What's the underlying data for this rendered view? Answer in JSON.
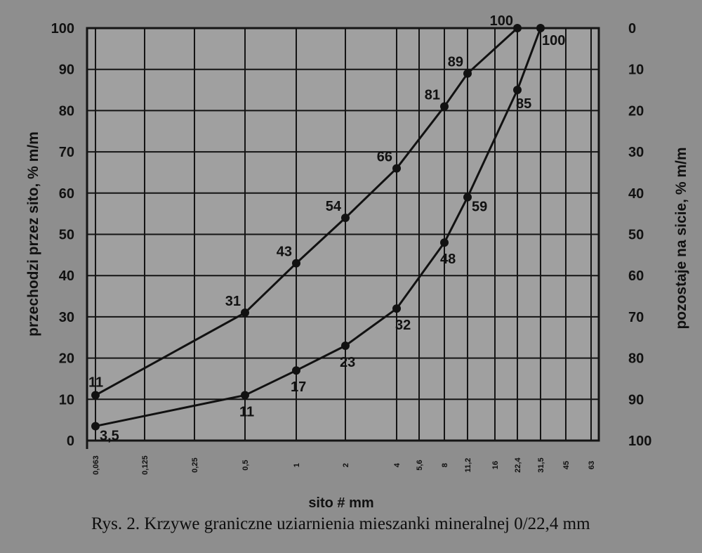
{
  "chart_data": {
    "type": "line",
    "xlabel": "sito # mm",
    "ylabel": "przechodzi przez sito, % m/m",
    "ylabel_right": "pozostaje na sicie, % m/m",
    "x_scale": "log",
    "x_ticks": [
      "0,063",
      "0,125",
      "0,25",
      "0,5",
      "1",
      "2",
      "4",
      "5,6",
      "8",
      "11,2",
      "16",
      "22,4",
      "31,5",
      "45",
      "63"
    ],
    "x_tick_values": [
      0.063,
      0.125,
      0.25,
      0.5,
      1,
      2,
      4,
      5.6,
      8,
      11.2,
      16,
      22.4,
      31.5,
      45,
      63
    ],
    "y_ticks_left": [
      "0",
      "10",
      "20",
      "30",
      "40",
      "50",
      "60",
      "70",
      "80",
      "90",
      "100"
    ],
    "y_ticks_right": [
      "100",
      "90",
      "80",
      "70",
      "60",
      "50",
      "40",
      "30",
      "20",
      "10",
      "0"
    ],
    "ylim": [
      0,
      100
    ],
    "grid": true,
    "series": [
      {
        "x": [
          0.063,
          0.5,
          1,
          2,
          4,
          8,
          11.2,
          22.4
        ],
        "values": [
          11,
          31,
          43,
          54,
          66,
          81,
          89,
          100
        ],
        "labels": [
          "11",
          "31",
          "43",
          "54",
          "66",
          "81",
          "89",
          "100"
        ]
      },
      {
        "x": [
          0.063,
          0.5,
          1,
          2,
          4,
          8,
          11.2,
          22.4,
          31.5
        ],
        "values": [
          3.5,
          11,
          17,
          23,
          32,
          48,
          59,
          85,
          100
        ],
        "labels": [
          "3,5",
          "11",
          "17",
          "23",
          "32",
          "48",
          "59",
          "85",
          "100"
        ]
      }
    ]
  },
  "caption": "Rys. 2. Krzywe graniczne uziarnienia mieszanki mineralnej 0/22,4 mm"
}
